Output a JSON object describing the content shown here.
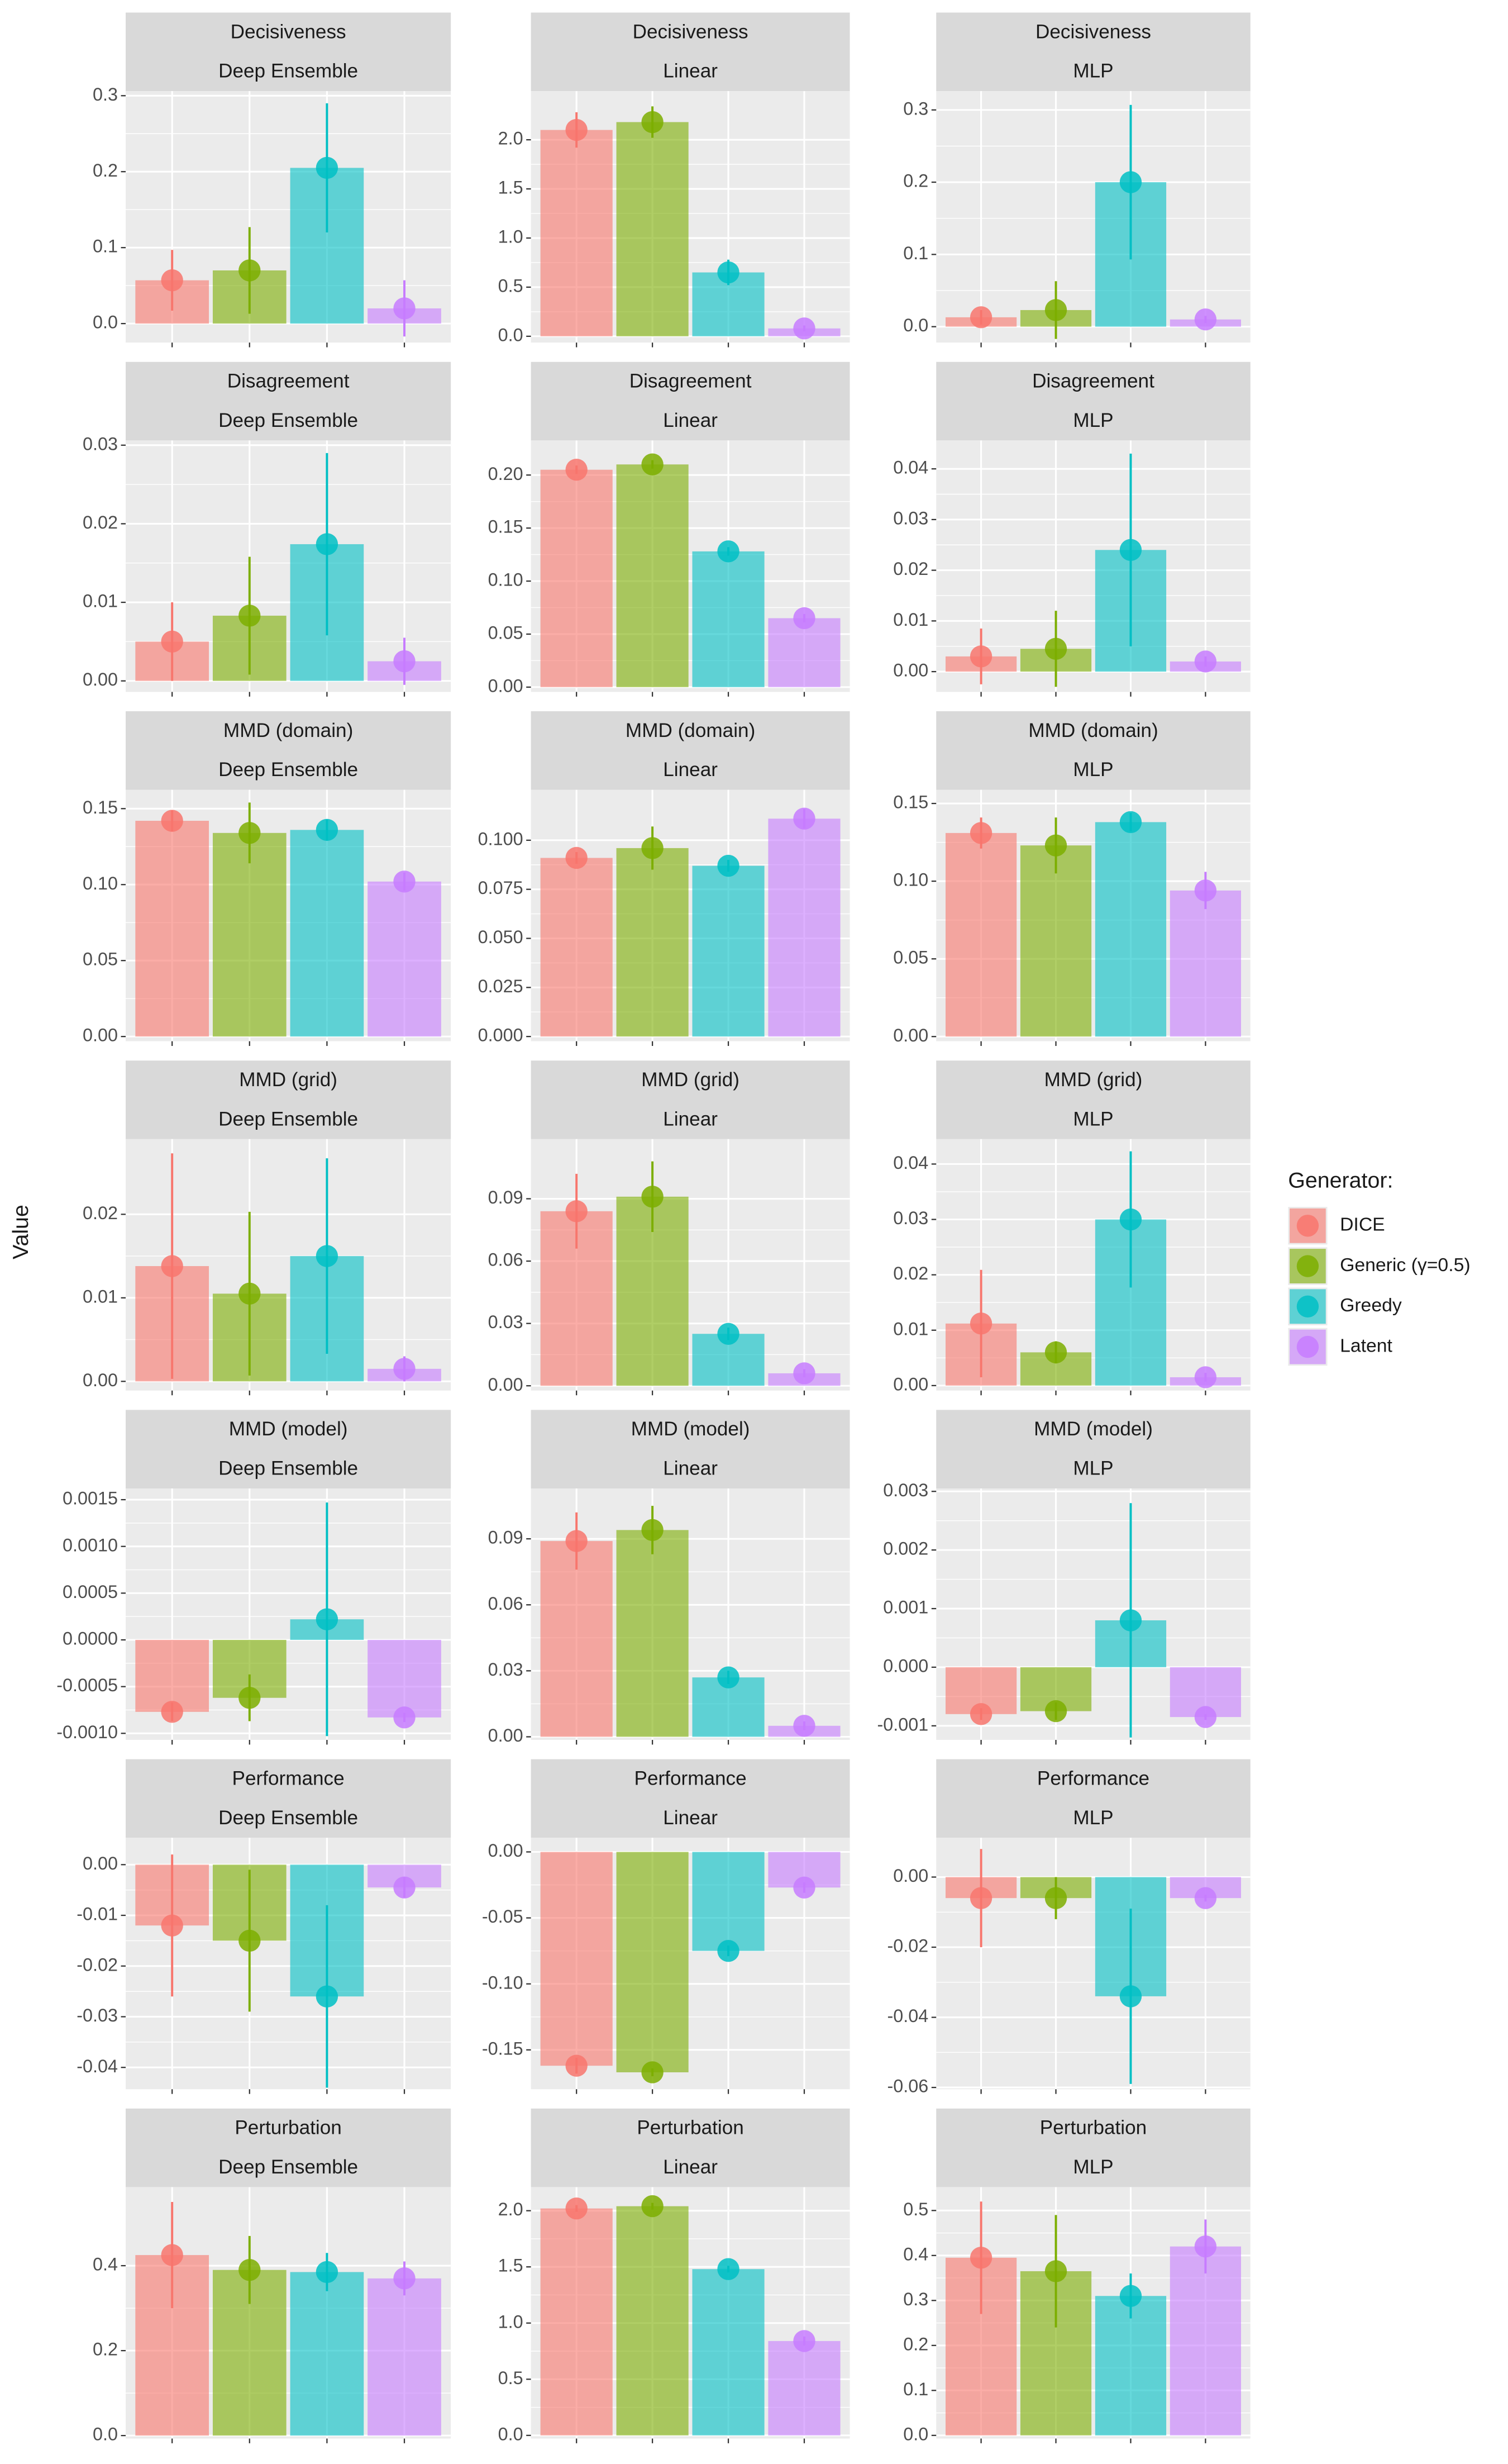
{
  "ylabel": "Value",
  "legend": {
    "title": "Generator:",
    "names": [
      "DICE",
      "Generic (γ=0.5)",
      "Greedy",
      "Latent"
    ],
    "colors": [
      "#F8766D",
      "#7CAE00",
      "#00BFC4",
      "#C77CFF"
    ]
  },
  "chart_data": [
    {
      "type": "bar",
      "title": "Decisiveness",
      "subtitle": "Deep Ensemble",
      "values": [
        0.057,
        0.07,
        0.205,
        0.02
      ],
      "errors": [
        0.04,
        0.057,
        0.085,
        0.037
      ],
      "ylim": [
        -0.025,
        0.306
      ],
      "yticks": [
        {
          "value": 0,
          "label": "0.0"
        },
        0.1,
        0.2,
        0.3
      ]
    },
    {
      "type": "bar",
      "title": "Decisiveness",
      "subtitle": "Linear",
      "values": [
        2.1,
        2.18,
        0.65,
        0.08
      ],
      "errors": [
        0.18,
        0.16,
        0.13,
        0.03
      ],
      "ylim": [
        -0.064,
        2.495
      ],
      "yticks": [
        {
          "value": 0,
          "label": "0.0"
        },
        0.5,
        {
          "value": 1,
          "label": "1.0"
        },
        1.5,
        {
          "value": 2,
          "label": "2.0"
        }
      ]
    },
    {
      "type": "bar",
      "title": "Decisiveness",
      "subtitle": "MLP",
      "values": [
        0.013,
        0.023,
        0.2,
        0.01
      ],
      "errors": [
        0.01,
        0.04,
        0.107,
        0.005
      ],
      "ylim": [
        -0.022,
        0.326
      ],
      "yticks": [
        {
          "value": 0,
          "label": "0.0"
        },
        0.1,
        0.2,
        0.3
      ]
    },
    {
      "type": "bar",
      "title": "Disagreement",
      "subtitle": "Deep Ensemble",
      "values": [
        0.005,
        0.0083,
        0.0174,
        0.0025
      ],
      "errors": [
        0.005,
        0.0075,
        0.0116,
        0.003
      ],
      "ylim": [
        -0.0014,
        0.0306
      ],
      "yticks": [
        {
          "value": 0,
          "label": "0.00"
        },
        0.01,
        0.02,
        0.03
      ]
    },
    {
      "type": "bar",
      "title": "Disagreement",
      "subtitle": "Linear",
      "values": [
        0.205,
        0.21,
        0.128,
        0.065
      ],
      "errors": [
        0.004,
        0.004,
        0.004,
        0.004
      ],
      "ylim": [
        -0.0045,
        0.2326
      ],
      "yticks": [
        {
          "value": 0,
          "label": "0.00"
        },
        0.05,
        {
          "value": 0.1,
          "label": "0.10"
        },
        0.15,
        {
          "value": 0.2,
          "label": "0.20"
        }
      ]
    },
    {
      "type": "bar",
      "title": "Disagreement",
      "subtitle": "MLP",
      "values": [
        0.003,
        0.0045,
        0.024,
        0.002
      ],
      "errors": [
        0.0055,
        0.0075,
        0.019,
        0.001
      ],
      "ylim": [
        -0.004,
        0.0456
      ],
      "yticks": [
        {
          "value": 0,
          "label": "0.00"
        },
        0.01,
        0.02,
        0.03,
        0.04
      ]
    },
    {
      "type": "bar",
      "title": "MMD (domain)",
      "subtitle": "Deep Ensemble",
      "values": [
        0.142,
        0.134,
        0.136,
        0.102
      ],
      "errors": [
        0.007,
        0.02,
        0.007,
        0.006
      ],
      "ylim": [
        -0.0031,
        0.1624
      ],
      "yticks": [
        {
          "value": 0,
          "label": "0.00"
        },
        0.05,
        {
          "value": 0.1,
          "label": "0.10"
        },
        0.15
      ]
    },
    {
      "type": "bar",
      "title": "MMD (domain)",
      "subtitle": "Linear",
      "values": [
        0.091,
        0.096,
        0.087,
        0.111
      ],
      "errors": [
        0.003,
        0.011,
        0.003,
        0.005
      ],
      "ylim": [
        -0.0024,
        0.1257
      ],
      "yticks": [
        {
          "value": 0,
          "label": "0.000"
        },
        0.025,
        {
          "value": 0.05,
          "label": "0.050"
        },
        0.075,
        {
          "value": 0.1,
          "label": "0.100"
        }
      ]
    },
    {
      "type": "bar",
      "title": "MMD (domain)",
      "subtitle": "MLP",
      "values": [
        0.131,
        0.123,
        0.138,
        0.094
      ],
      "errors": [
        0.01,
        0.018,
        0.006,
        0.012
      ],
      "ylim": [
        -0.003,
        0.1588
      ],
      "yticks": [
        {
          "value": 0,
          "label": "0.00"
        },
        0.05,
        {
          "value": 0.1,
          "label": "0.10"
        },
        0.15
      ]
    },
    {
      "type": "bar",
      "title": "MMD (grid)",
      "subtitle": "Deep Ensemble",
      "values": [
        0.0138,
        0.0105,
        0.015,
        0.0015
      ],
      "errors": [
        0.0135,
        0.0098,
        0.0117,
        0.0015
      ],
      "ylim": [
        -0.0011,
        0.029
      ],
      "yticks": [
        {
          "value": 0,
          "label": "0.00"
        },
        0.01,
        0.02
      ]
    },
    {
      "type": "bar",
      "title": "MMD (grid)",
      "subtitle": "Linear",
      "values": [
        0.084,
        0.091,
        0.025,
        0.006
      ],
      "errors": [
        0.018,
        0.017,
        0.003,
        0.002
      ],
      "ylim": [
        -0.0023,
        0.1187
      ],
      "yticks": [
        {
          "value": 0,
          "label": "0.00"
        },
        0.03,
        0.06,
        0.09
      ]
    },
    {
      "type": "bar",
      "title": "MMD (grid)",
      "subtitle": "MLP",
      "values": [
        0.0112,
        0.006,
        0.03,
        0.0015
      ],
      "errors": [
        0.0097,
        0.002,
        0.0123,
        0.0008
      ],
      "ylim": [
        -0.0009,
        0.0445
      ],
      "yticks": [
        {
          "value": 0,
          "label": "0.00"
        },
        0.01,
        0.02,
        0.03,
        0.04
      ]
    },
    {
      "type": "bar",
      "title": "MMD (model)",
      "subtitle": "Deep Ensemble",
      "values": [
        -0.00077,
        -0.00062,
        0.00022,
        -0.00083
      ],
      "errors": [
        0.0001,
        0.00025,
        0.00125,
        5e-05
      ],
      "ylim": [
        -0.00107,
        0.00162
      ],
      "yticks": [
        {
          "value": -0.001,
          "label": "-0.0010"
        },
        -0.0005,
        {
          "value": 0,
          "label": "0.0000"
        },
        0.0005,
        {
          "value": 0.001,
          "label": "0.0010"
        },
        0.0015
      ]
    },
    {
      "type": "bar",
      "title": "MMD (model)",
      "subtitle": "Linear",
      "values": [
        0.089,
        0.094,
        0.027,
        0.005
      ],
      "errors": [
        0.013,
        0.011,
        0.003,
        0.002
      ],
      "ylim": [
        -0.0014,
        0.1129
      ],
      "yticks": [
        {
          "value": 0,
          "label": "0.00"
        },
        0.03,
        0.06,
        0.09
      ]
    },
    {
      "type": "bar",
      "title": "MMD (model)",
      "subtitle": "MLP",
      "values": [
        -0.0008,
        -0.00075,
        0.0008,
        -0.00085
      ],
      "errors": [
        0.0001,
        0.00015,
        0.002,
        5e-05
      ],
      "ylim": [
        -0.00124,
        0.00305
      ],
      "yticks": [
        -0.001,
        {
          "value": 0,
          "label": "0.000"
        },
        0.001,
        0.002,
        0.003
      ]
    },
    {
      "type": "bar",
      "title": "Performance",
      "subtitle": "Deep Ensemble",
      "values": [
        -0.012,
        -0.015,
        -0.026,
        -0.0045
      ],
      "errors": [
        0.014,
        0.014,
        0.018,
        0.002
      ],
      "ylim": [
        -0.0443,
        0.0053
      ],
      "yticks": [
        -0.04,
        -0.03,
        -0.02,
        -0.01,
        {
          "value": 0,
          "label": "0.00"
        }
      ]
    },
    {
      "type": "bar",
      "title": "Performance",
      "subtitle": "Linear",
      "values": [
        -0.162,
        -0.167,
        -0.075,
        -0.027
      ],
      "errors": [
        0.006,
        0.003,
        0.004,
        0.004
      ],
      "ylim": [
        -0.1798,
        0.0107
      ],
      "yticks": [
        -0.15,
        {
          "value": -0.1,
          "label": "-0.10"
        },
        -0.05,
        {
          "value": 0,
          "label": "0.00"
        }
      ]
    },
    {
      "type": "bar",
      "title": "Performance",
      "subtitle": "MLP",
      "values": [
        -0.006,
        -0.006,
        -0.034,
        -0.006
      ],
      "errors": [
        0.014,
        0.006,
        0.025,
        0.001
      ],
      "ylim": [
        -0.0605,
        0.0112
      ],
      "yticks": [
        -0.06,
        -0.04,
        -0.02,
        {
          "value": 0,
          "label": "0.00"
        }
      ]
    },
    {
      "type": "bar",
      "title": "Perturbation",
      "subtitle": "Deep Ensemble",
      "values": [
        0.425,
        0.39,
        0.385,
        0.37
      ],
      "errors": [
        0.125,
        0.08,
        0.045,
        0.04
      ],
      "ylim": [
        -0.007,
        0.585
      ],
      "yticks": [
        {
          "value": 0,
          "label": "0.0"
        },
        0.2,
        0.4
      ]
    },
    {
      "type": "bar",
      "title": "Perturbation",
      "subtitle": "Linear",
      "values": [
        2.02,
        2.04,
        1.48,
        0.84
      ],
      "errors": [
        0.03,
        0.03,
        0.03,
        0.04
      ],
      "ylim": [
        -0.028,
        2.21
      ],
      "yticks": [
        {
          "value": 0,
          "label": "0.0"
        },
        0.5,
        {
          "value": 1,
          "label": "1.0"
        },
        1.5,
        {
          "value": 2,
          "label": "2.0"
        }
      ]
    },
    {
      "type": "bar",
      "title": "Perturbation",
      "subtitle": "MLP",
      "values": [
        0.395,
        0.365,
        0.31,
        0.42
      ],
      "errors": [
        0.125,
        0.125,
        0.05,
        0.06
      ],
      "ylim": [
        -0.007,
        0.552
      ],
      "yticks": [
        {
          "value": 0,
          "label": "0.0"
        },
        0.1,
        0.2,
        0.3,
        0.4,
        0.5
      ]
    }
  ]
}
